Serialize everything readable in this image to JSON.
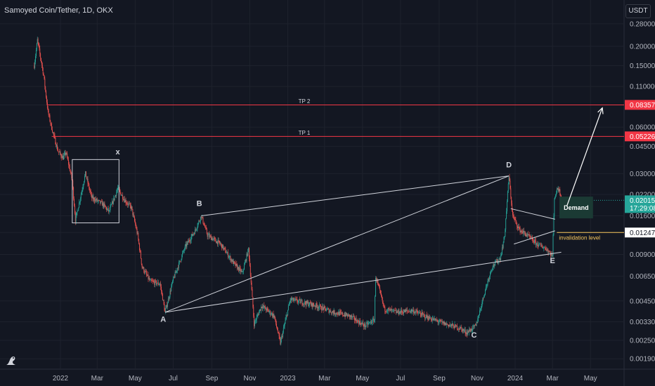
{
  "header": {
    "symbol_title": "Samoyed Coin/Tether, 1D, OKX",
    "currency": "USDT"
  },
  "colors": {
    "background": "#131722",
    "up_candle": "#26a69a",
    "down_candle": "#ef5350",
    "target_line": "#f23645",
    "invalidation_line": "#f7c65c",
    "trendline": "#d1d4dc",
    "demand_zone": "#1b3a34"
  },
  "chart_data": {
    "type": "candlestick",
    "y_scale": "log",
    "ylim": [
      0.0017,
      0.31
    ],
    "y_ticks": [
      "0.280000",
      "0.200000",
      "0.150000",
      "0.110000",
      "0.083570",
      "0.060000",
      "0.045000",
      "0.030000",
      "0.022000",
      "0.016000",
      "0.012474",
      "0.009000",
      "0.006500",
      "0.004500",
      "0.003300",
      "0.002500",
      "0.001900"
    ],
    "x_ticks": [
      "2022",
      "Mar",
      "May",
      "Jul",
      "Sep",
      "Nov",
      "2023",
      "Mar",
      "May",
      "Jul",
      "Sep",
      "Nov",
      "2024",
      "Mar",
      "May"
    ],
    "price_path": [
      [
        "2021-11-20",
        0.15
      ],
      [
        "2021-11-25",
        0.22
      ],
      [
        "2021-12-05",
        0.13
      ],
      [
        "2021-12-12",
        0.075
      ],
      [
        "2021-12-20",
        0.055
      ],
      [
        "2021-12-28",
        0.042
      ],
      [
        "2022-01-05",
        0.038
      ],
      [
        "2022-01-10",
        0.041
      ],
      [
        "2022-01-20",
        0.027
      ],
      [
        "2022-01-25",
        0.015
      ],
      [
        "2022-02-05",
        0.024
      ],
      [
        "2022-02-10",
        0.03
      ],
      [
        "2022-02-20",
        0.021
      ],
      [
        "2022-03-10",
        0.019
      ],
      [
        "2022-03-20",
        0.017
      ],
      [
        "2022-04-03",
        0.024
      ],
      [
        "2022-04-15",
        0.02
      ],
      [
        "2022-04-25",
        0.018
      ],
      [
        "2022-05-05",
        0.012
      ],
      [
        "2022-05-12",
        0.0075
      ],
      [
        "2022-05-25",
        0.006
      ],
      [
        "2022-06-10",
        0.0058
      ],
      [
        "2022-06-18",
        0.0038
      ],
      [
        "2022-07-01",
        0.0062
      ],
      [
        "2022-07-20",
        0.01
      ],
      [
        "2022-08-05",
        0.0128
      ],
      [
        "2022-08-15",
        0.016
      ],
      [
        "2022-08-25",
        0.012
      ],
      [
        "2022-09-15",
        0.0105
      ],
      [
        "2022-10-05",
        0.008
      ],
      [
        "2022-10-20",
        0.0068
      ],
      [
        "2022-10-30",
        0.0098
      ],
      [
        "2022-11-08",
        0.0032
      ],
      [
        "2022-11-20",
        0.0042
      ],
      [
        "2022-12-10",
        0.0036
      ],
      [
        "2022-12-20",
        0.0024
      ],
      [
        "2023-01-05",
        0.0046
      ],
      [
        "2023-01-25",
        0.0044
      ],
      [
        "2023-02-15",
        0.0042
      ],
      [
        "2023-03-15",
        0.0038
      ],
      [
        "2023-04-10",
        0.0036
      ],
      [
        "2023-05-05",
        0.0031
      ],
      [
        "2023-05-20",
        0.0034
      ],
      [
        "2023-05-22",
        0.0065
      ],
      [
        "2023-06-05",
        0.004
      ],
      [
        "2023-06-25",
        0.0038
      ],
      [
        "2023-07-20",
        0.0039
      ],
      [
        "2023-08-15",
        0.0035
      ],
      [
        "2023-09-10",
        0.0032
      ],
      [
        "2023-10-05",
        0.003
      ],
      [
        "2023-10-15",
        0.0028
      ],
      [
        "2023-10-30",
        0.0031
      ],
      [
        "2023-11-15",
        0.0055
      ],
      [
        "2023-11-25",
        0.0075
      ],
      [
        "2023-12-08",
        0.0085
      ],
      [
        "2023-12-15",
        0.0118
      ],
      [
        "2023-12-22",
        0.029
      ],
      [
        "2023-12-28",
        0.016
      ],
      [
        "2024-01-08",
        0.013
      ],
      [
        "2024-01-20",
        0.012
      ],
      [
        "2024-02-05",
        0.0105
      ],
      [
        "2024-02-20",
        0.0098
      ],
      [
        "2024-03-01",
        0.0088
      ],
      [
        "2024-03-04",
        0.021
      ],
      [
        "2024-03-10",
        0.0245
      ],
      [
        "2024-03-17",
        0.0202
      ]
    ],
    "horizontal_levels": [
      {
        "label": "TP 2",
        "price": 0.08357,
        "price_label": "0.083570",
        "start": "2021-12-10",
        "color": "target"
      },
      {
        "label": "TP 1",
        "price": 0.052267,
        "price_label": "0.052267",
        "start": "2021-12-18",
        "color": "target"
      },
      {
        "label": "invalidation level",
        "price": 0.012474,
        "price_label": "0.012474",
        "start": "2024-03-08",
        "color": "invalidation"
      }
    ],
    "last_price": {
      "price": 0.020156,
      "price_label": "0.020156",
      "countdown": "17:29:08"
    },
    "trendlines": [
      {
        "from": [
          "2022-06-18",
          0.0038
        ],
        "to": [
          "2023-12-22",
          0.029
        ]
      },
      {
        "from": [
          "2022-06-18",
          0.0038
        ],
        "to": [
          "2024-03-15",
          0.0093
        ]
      },
      {
        "from": [
          "2022-08-15",
          0.016
        ],
        "to": [
          "2023-12-22",
          0.029
        ]
      },
      {
        "from": [
          "2023-12-25",
          0.0178
        ],
        "to": [
          "2024-03-05",
          0.0152
        ]
      },
      {
        "from": [
          "2023-12-30",
          0.0105
        ],
        "to": [
          "2024-03-05",
          0.0128
        ]
      }
    ],
    "wave_labels": [
      {
        "label": "x",
        "date": "2022-04-03",
        "price": 0.04
      },
      {
        "label": "A",
        "date": "2022-06-15",
        "price": 0.0033
      },
      {
        "label": "B",
        "date": "2022-08-12",
        "price": 0.0185
      },
      {
        "label": "C",
        "date": "2023-10-27",
        "price": 0.0026
      },
      {
        "label": "D",
        "date": "2023-12-22",
        "price": 0.033
      },
      {
        "label": "E",
        "date": "2024-03-01",
        "price": 0.0079
      }
    ],
    "boxes": [
      {
        "from": [
          "2022-01-20",
          0.037
        ],
        "to": [
          "2022-04-05",
          0.0144
        ]
      }
    ],
    "demand_zone": {
      "label": "Demand",
      "from": [
        "2024-03-12",
        0.0213
      ],
      "to": [
        "2024-05-05",
        0.0154
      ]
    },
    "projection_arrow": {
      "from": [
        "2024-03-24",
        0.0185
      ],
      "to": [
        "2024-05-20",
        0.08
      ]
    }
  }
}
